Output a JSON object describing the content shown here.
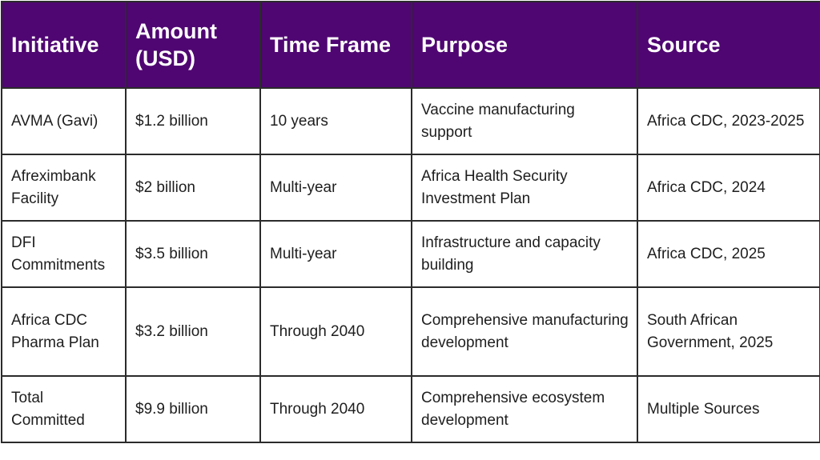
{
  "table": {
    "headers": [
      "Initiative",
      "Amount (USD)",
      "Time Frame",
      "Purpose",
      "Source"
    ],
    "rows": [
      [
        "AVMA (Gavi)",
        "$1.2 billion",
        "10 years",
        "Vaccine manufacturing support",
        "Africa CDC, 2023-2025"
      ],
      [
        "Afreximbank Facility",
        "$2 billion",
        "Multi-year",
        "Africa Health Security Investment Plan",
        "Africa CDC, 2024"
      ],
      [
        "DFI Commitments",
        "$3.5 billion",
        "Multi-year",
        "Infrastructure and capacity building",
        "Africa CDC, 2025"
      ],
      [
        "Africa CDC Pharma Plan",
        "$3.2 billion",
        "Through 2040",
        "Comprehensive manufacturing development",
        "South African Government, 2025"
      ],
      [
        "Total Committed",
        "$9.9 billion",
        "Through 2040",
        "Comprehensive ecosystem development",
        "Multiple Sources"
      ]
    ]
  },
  "colors": {
    "header_background": "#4f0672",
    "header_text": "#ffffff",
    "border": "#2b2b2b",
    "body_text": "#1e1e1e"
  }
}
